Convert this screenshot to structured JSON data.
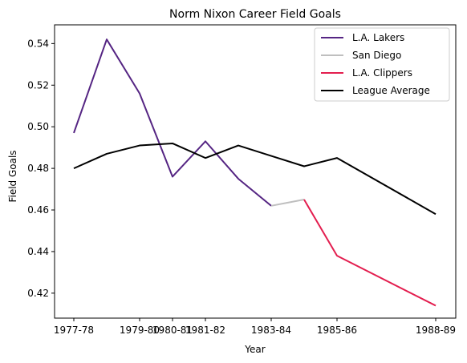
{
  "chart_data": {
    "type": "line",
    "title": "Norm Nixon Career Field Goals",
    "xlabel": "Year",
    "ylabel": "Field Goals",
    "x_ticks": [
      "1977-78",
      "1979-80",
      "1980-81",
      "1981-82",
      "1983-84",
      "1985-86",
      "1988-89"
    ],
    "ylim": [
      0.408,
      0.549
    ],
    "y_ticks": [
      "0.42",
      "0.44",
      "0.46",
      "0.48",
      "0.50",
      "0.52",
      "0.54"
    ],
    "grid": false,
    "legend_position": "top-right",
    "series": [
      {
        "name": "L.A. Lakers",
        "color": "#552583",
        "points": [
          {
            "x": "1977-78",
            "y": 0.497
          },
          {
            "x": "1978-79",
            "y": 0.542
          },
          {
            "x": "1979-80",
            "y": 0.516
          },
          {
            "x": "1980-81",
            "y": 0.476
          },
          {
            "x": "1981-82",
            "y": 0.493
          },
          {
            "x": "1982-83",
            "y": 0.475
          },
          {
            "x": "1983-84",
            "y": 0.462
          }
        ]
      },
      {
        "name": "San Diego",
        "color": "#bfbfbf",
        "points": [
          {
            "x": "1983-84",
            "y": 0.462
          },
          {
            "x": "1984-85",
            "y": 0.465
          }
        ]
      },
      {
        "name": "L.A. Clippers",
        "color": "#e31e4f",
        "points": [
          {
            "x": "1984-85",
            "y": 0.465
          },
          {
            "x": "1985-86",
            "y": 0.438
          },
          {
            "x": "1988-89",
            "y": 0.414
          }
        ]
      },
      {
        "name": "League Average",
        "color": "#000000",
        "points": [
          {
            "x": "1977-78",
            "y": 0.48
          },
          {
            "x": "1978-79",
            "y": 0.487
          },
          {
            "x": "1979-80",
            "y": 0.491
          },
          {
            "x": "1980-81",
            "y": 0.492
          },
          {
            "x": "1981-82",
            "y": 0.485
          },
          {
            "x": "1982-83",
            "y": 0.491
          },
          {
            "x": "1983-84",
            "y": 0.486
          },
          {
            "x": "1984-85",
            "y": 0.481
          },
          {
            "x": "1985-86",
            "y": 0.485
          },
          {
            "x": "1988-89",
            "y": 0.458
          }
        ]
      }
    ]
  }
}
